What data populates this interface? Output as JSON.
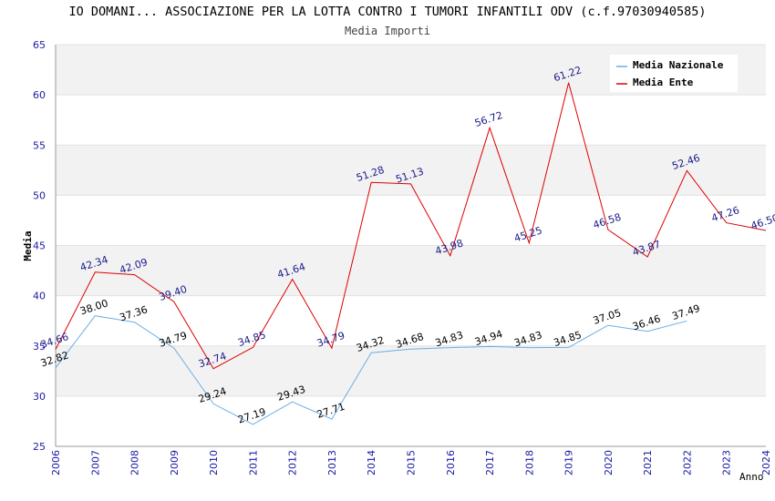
{
  "chart_data": {
    "type": "line",
    "title": "IO DOMANI... ASSOCIAZIONE PER LA LOTTA CONTRO I TUMORI INFANTILI ODV (c.f.97030940585)",
    "subtitle": "Media Importi",
    "xlabel": "Anno",
    "ylabel": "Media",
    "ylim": [
      25,
      65
    ],
    "yticks": [
      25,
      30,
      35,
      40,
      45,
      50,
      55,
      60,
      65
    ],
    "x": [
      "2006",
      "2007",
      "2008",
      "2009",
      "2010",
      "2011",
      "2012",
      "2013",
      "2014",
      "2015",
      "2016",
      "2017",
      "2018",
      "2019",
      "2020",
      "2021",
      "2022",
      "2023",
      "2024"
    ],
    "grid": true,
    "legend_position": "top-right",
    "series": [
      {
        "name": "Media Nazionale",
        "color": "#6aaee6",
        "label_color": "#000000",
        "values": [
          32.82,
          38.0,
          37.36,
          34.79,
          29.24,
          27.19,
          29.43,
          27.71,
          34.32,
          34.68,
          34.83,
          34.94,
          34.83,
          34.85,
          37.05,
          36.46,
          37.49,
          null,
          null
        ],
        "labels": [
          "32.82",
          "38.00",
          "37.36",
          "34.79",
          "29.24",
          "27.19",
          "29.43",
          "27.71",
          "34.32",
          "34.68",
          "34.83",
          "34.94",
          "34.83",
          "34.85",
          "37.05",
          "36.46",
          "37.49",
          null,
          null
        ]
      },
      {
        "name": "Media Ente",
        "color": "#dd0000",
        "label_color": "#1a1a8c",
        "values": [
          34.66,
          42.34,
          42.09,
          39.4,
          32.74,
          34.85,
          41.64,
          34.79,
          51.28,
          51.13,
          43.98,
          56.72,
          45.25,
          61.22,
          46.58,
          43.87,
          52.46,
          47.26,
          46.5
        ],
        "labels": [
          "34.66",
          "42.34",
          "42.09",
          "39.40",
          "32.74",
          "34.85",
          "41.64",
          "34.79",
          "51.28",
          "51.13",
          "43.98",
          "56.72",
          "45.25",
          "61.22",
          "46.58",
          "43.87",
          "52.46",
          "47.26",
          "46.50"
        ]
      }
    ]
  }
}
